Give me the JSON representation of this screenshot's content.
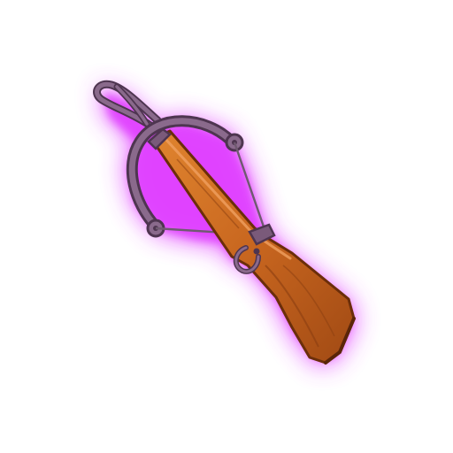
{
  "item": {
    "icon": "crossbow-icon",
    "rarity_glow": "#e040ff"
  },
  "colors": {
    "background": "#ffffff",
    "glow": "#e040ff",
    "wood_light": "#d9782a",
    "wood_mid": "#c0601c",
    "wood_dark": "#8a3e10",
    "metal": "#7a5a7a",
    "metal_dark": "#4e3550",
    "string": "#6f5a70"
  }
}
